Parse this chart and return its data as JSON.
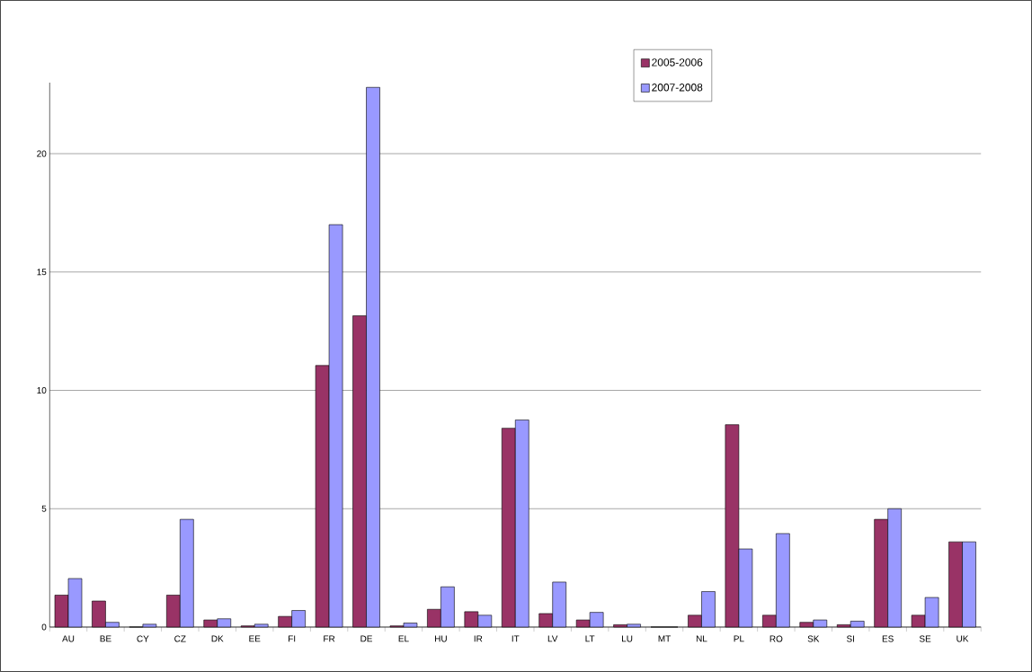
{
  "chart_data": {
    "type": "bar",
    "categories": [
      "AU",
      "BE",
      "CY",
      "CZ",
      "DK",
      "EE",
      "FI",
      "FR",
      "DE",
      "EL",
      "HU",
      "IR",
      "IT",
      "LV",
      "LT",
      "LU",
      "MT",
      "NL",
      "PL",
      "RO",
      "SK",
      "SI",
      "ES",
      "SE",
      "UK"
    ],
    "series": [
      {
        "name": "2005-2006",
        "color": "#993366",
        "values": [
          1.35,
          1.1,
          0,
          1.35,
          0.3,
          0.05,
          0.45,
          11.05,
          13.15,
          0.05,
          0.75,
          0.65,
          8.4,
          0.57,
          0.3,
          0.1,
          0,
          0.5,
          8.55,
          0.5,
          0.2,
          0.1,
          4.55,
          0.5,
          3.6
        ]
      },
      {
        "name": "2007-2008",
        "color": "#9999ff",
        "values": [
          2.05,
          0.2,
          0.12,
          4.55,
          0.35,
          0.12,
          0.7,
          17.0,
          22.8,
          0.17,
          1.7,
          0.5,
          8.75,
          1.9,
          0.62,
          0.12,
          0,
          1.5,
          3.3,
          3.95,
          0.3,
          0.25,
          5.0,
          1.25,
          3.6
        ]
      }
    ],
    "ylim": [
      0,
      23
    ],
    "yticks": [
      0,
      5,
      10,
      15,
      20
    ],
    "grid": "y",
    "legend": "top right"
  }
}
